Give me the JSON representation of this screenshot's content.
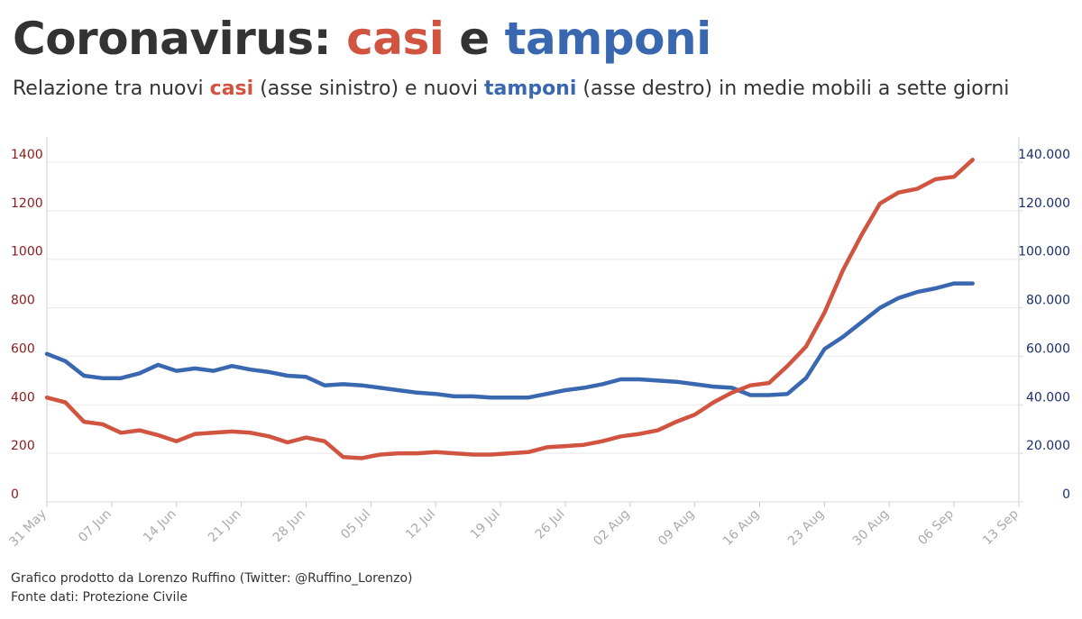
{
  "chart_data": {
    "type": "line",
    "title_parts": [
      "Coronavirus:",
      "casi",
      "e",
      "tamponi"
    ],
    "subtitle_parts": [
      "Relazione tra nuovi",
      "(asse sinistro) e nuovi",
      "(asse destro) in medie mobili a sette giorni"
    ],
    "footer": [
      "Grafico prodotto da Lorenzo Ruffino (Twitter: @Ruffino_Lorenzo)",
      "Fonte dati: Protezione Civile"
    ],
    "x": [
      "05-31",
      "06-02",
      "06-04",
      "06-06",
      "06-08",
      "06-10",
      "06-12",
      "06-14",
      "06-16",
      "06-18",
      "06-20",
      "06-22",
      "06-24",
      "06-26",
      "06-28",
      "06-30",
      "07-02",
      "07-04",
      "07-06",
      "07-08",
      "07-10",
      "07-12",
      "07-14",
      "07-16",
      "07-18",
      "07-20",
      "07-22",
      "07-24",
      "07-26",
      "07-28",
      "07-30",
      "08-01",
      "08-03",
      "08-05",
      "08-07",
      "08-09",
      "08-11",
      "08-13",
      "08-15",
      "08-17",
      "08-19",
      "08-21",
      "08-23",
      "08-25",
      "08-27",
      "08-29",
      "08-31",
      "09-02",
      "09-04",
      "09-06",
      "09-08"
    ],
    "xlim": [
      "05-31",
      "09-13"
    ],
    "xticks": [
      {
        "value": "05-31",
        "label": "31 May"
      },
      {
        "value": "06-07",
        "label": "07 Jun"
      },
      {
        "value": "06-14",
        "label": "14 Jun"
      },
      {
        "value": "06-21",
        "label": "21 Jun"
      },
      {
        "value": "06-28",
        "label": "28 Jun"
      },
      {
        "value": "07-05",
        "label": "05 Jul"
      },
      {
        "value": "07-12",
        "label": "12 Jul"
      },
      {
        "value": "07-19",
        "label": "19 Jul"
      },
      {
        "value": "07-26",
        "label": "26 Jul"
      },
      {
        "value": "08-02",
        "label": "02 Aug"
      },
      {
        "value": "08-09",
        "label": "09 Aug"
      },
      {
        "value": "08-16",
        "label": "16 Aug"
      },
      {
        "value": "08-23",
        "label": "23 Aug"
      },
      {
        "value": "08-30",
        "label": "30 Aug"
      },
      {
        "value": "09-06",
        "label": "06 Sep"
      },
      {
        "value": "09-13",
        "label": "13 Sep"
      }
    ],
    "ylim": [
      0,
      1400
    ],
    "yticks": [
      0,
      200,
      400,
      600,
      800,
      1000,
      1200,
      1400
    ],
    "y2lim": [
      0,
      140000
    ],
    "y2ticks": [
      0,
      {
        "value": 20000,
        "label": "20.000"
      },
      {
        "value": 40000,
        "label": "40.000"
      },
      {
        "value": 60000,
        "label": "60.000"
      },
      {
        "value": 80000,
        "label": "80.000"
      },
      {
        "value": 100000,
        "label": "100.000"
      },
      {
        "value": 120000,
        "label": "120.000"
      },
      {
        "value": 140000,
        "label": "140.000"
      }
    ],
    "grid": true,
    "series": [
      {
        "name": "casi",
        "color": "#d05440",
        "axis": "y",
        "values": [
          430,
          410,
          330,
          320,
          285,
          295,
          275,
          250,
          280,
          285,
          290,
          285,
          270,
          245,
          265,
          250,
          185,
          180,
          195,
          200,
          200,
          205,
          200,
          195,
          195,
          200,
          205,
          225,
          230,
          235,
          250,
          270,
          280,
          295,
          330,
          360,
          410,
          450,
          480,
          490,
          560,
          640,
          780,
          955,
          1100,
          1230,
          1275,
          1290,
          1330,
          1340,
          1410
        ]
      },
      {
        "name": "tamponi",
        "color": "#3a68b0",
        "axis": "y2",
        "values": [
          61000,
          58000,
          52000,
          51000,
          51000,
          53000,
          56500,
          54000,
          55000,
          54000,
          56000,
          54500,
          53500,
          52000,
          51500,
          48000,
          48500,
          48000,
          47000,
          46000,
          45000,
          44500,
          43500,
          43500,
          43000,
          43000,
          43000,
          44500,
          46000,
          47000,
          48500,
          50500,
          50500,
          50000,
          49500,
          48500,
          47500,
          47000,
          44000,
          44000,
          44500,
          51000,
          63000,
          68000,
          74000,
          80000,
          84000,
          86500,
          88000,
          90000,
          90000
        ]
      }
    ]
  }
}
